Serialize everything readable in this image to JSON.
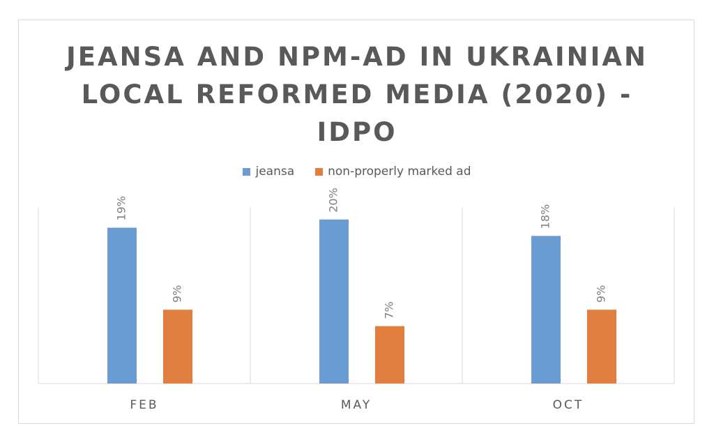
{
  "chart_data": {
    "type": "bar",
    "title_lines": [
      "JEANSA AND NPM-AD IN UKRAINIAN",
      "LOCAL REFORMED MEDIA (2020) -",
      "IDPO"
    ],
    "categories": [
      "FEB",
      "MAY",
      "OCT"
    ],
    "series": [
      {
        "name": "jeansa",
        "values": [
          19,
          20,
          18
        ],
        "labels": [
          "19%",
          "20%",
          "18%"
        ],
        "color": "#6a9bd1"
      },
      {
        "name": "non-properly marked ad",
        "values": [
          9,
          7,
          9
        ],
        "labels": [
          "9%",
          "7%",
          "9%"
        ],
        "color": "#e07f3f"
      }
    ],
    "ylim": [
      0,
      25
    ],
    "xlabel": "",
    "ylabel": "",
    "grid": false,
    "legend_position": "top"
  }
}
